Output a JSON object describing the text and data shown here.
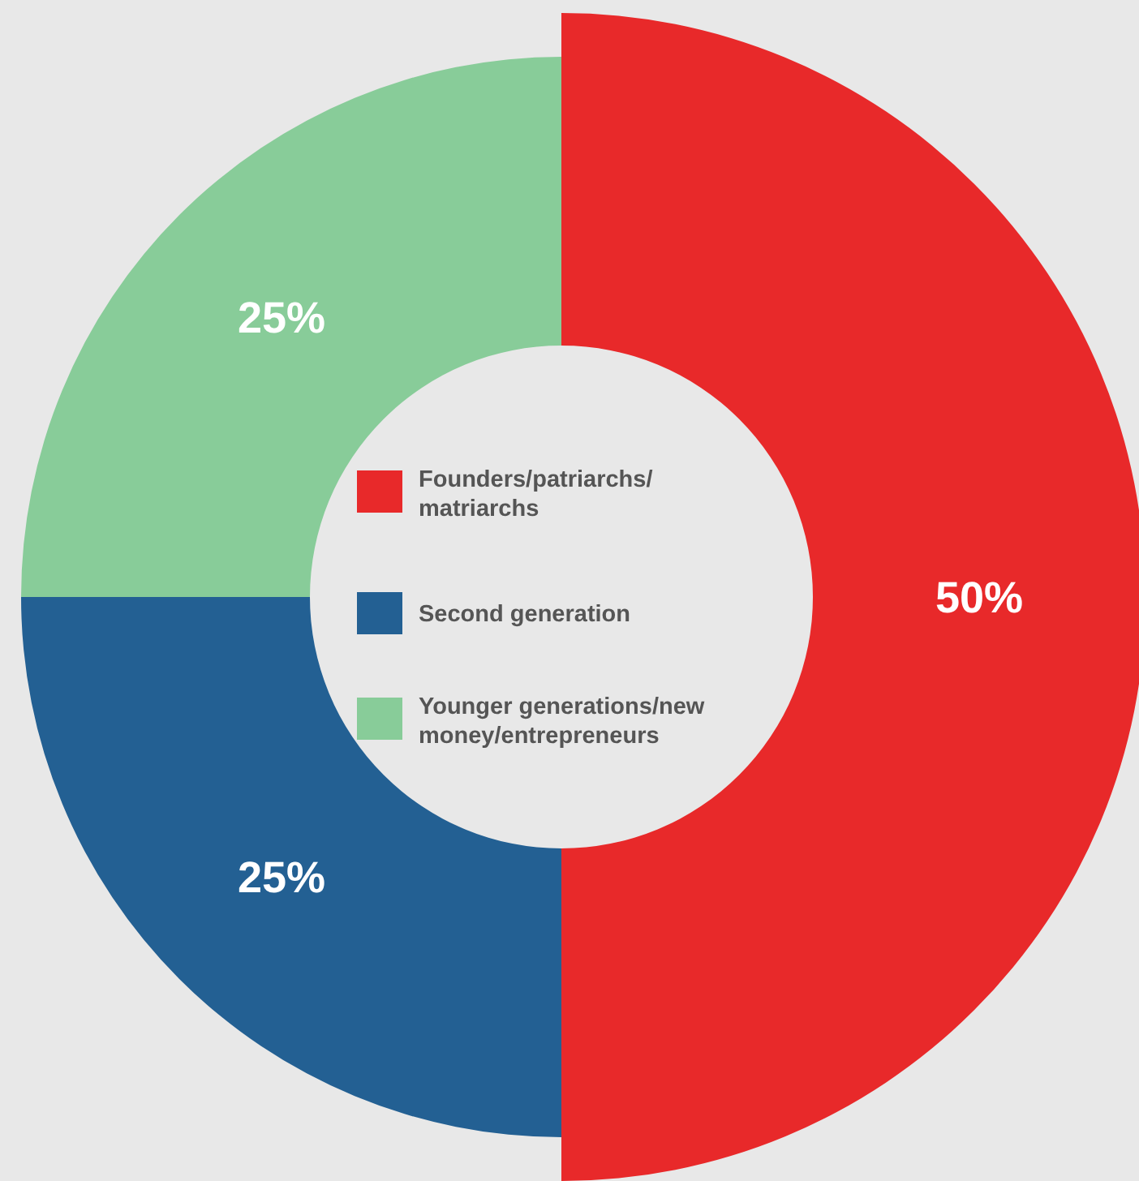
{
  "chart_data": {
    "type": "donut",
    "categories": [
      "Founders/patriarchs/matriarchs",
      "Second generation",
      "Younger generations/new money/entrepreneurs"
    ],
    "values": [
      50,
      25,
      25
    ],
    "value_labels": [
      "50%",
      "25%",
      "25%"
    ],
    "colors": [
      "#e8292a",
      "#236093",
      "#88cc99"
    ],
    "legend": "center"
  }
}
